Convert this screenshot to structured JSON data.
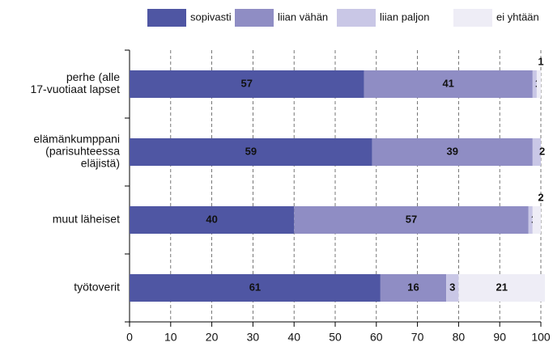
{
  "chart_data": {
    "type": "stacked-bar-horizontal",
    "categories": [
      [
        "perhe (alle",
        "17-vuotiaat lapset"
      ],
      [
        "elämänkumppani",
        "(parisuhteessa",
        "eläjistä)"
      ],
      [
        "muut läheiset"
      ],
      [
        "työtoverit"
      ]
    ],
    "series": [
      {
        "name": "sopivasti",
        "color": "#4f56a3",
        "values": [
          57,
          59,
          40,
          61
        ]
      },
      {
        "name": "liian vähän",
        "color": "#8f8dc4",
        "values": [
          41,
          39,
          57,
          16
        ]
      },
      {
        "name": "liian paljon",
        "color": "#c9c7e6",
        "values": [
          1,
          2,
          1,
          3
        ]
      },
      {
        "name": "ei yhtään",
        "color": "#eeedf6",
        "values": [
          1,
          null,
          2,
          21
        ]
      }
    ],
    "xlim": [
      0,
      100
    ],
    "xticks": [
      0,
      10,
      20,
      30,
      40,
      50,
      60,
      70,
      80,
      90,
      100
    ],
    "grid": true
  }
}
